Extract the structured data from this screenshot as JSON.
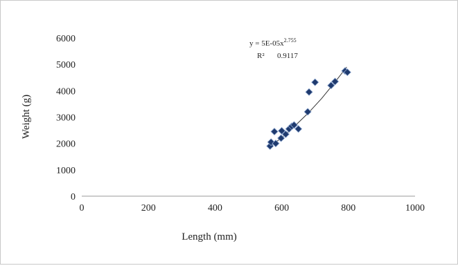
{
  "chart_data": {
    "type": "scatter",
    "title": "",
    "xlabel": "Length (mm)",
    "ylabel": "Weight (g)",
    "xlim": [
      0,
      1000
    ],
    "ylim": [
      0,
      6000
    ],
    "xticks": [
      0,
      200,
      400,
      600,
      800,
      1000
    ],
    "yticks": [
      0,
      1000,
      2000,
      3000,
      4000,
      5000,
      6000
    ],
    "xtick_labels": [
      "0",
      "200",
      "400",
      "600",
      "800",
      "1000"
    ],
    "ytick_labels": [
      "0",
      "1000",
      "2000",
      "3000",
      "4000",
      "5000",
      "6000"
    ],
    "grid": false,
    "legend": "none",
    "marker": "diamond",
    "marker_color": "#1f3a6e",
    "trendline_color": "#333333",
    "points": [
      {
        "x": 565,
        "y": 1900
      },
      {
        "x": 568,
        "y": 2050
      },
      {
        "x": 578,
        "y": 2450
      },
      {
        "x": 582,
        "y": 2000
      },
      {
        "x": 598,
        "y": 2200
      },
      {
        "x": 600,
        "y": 2480
      },
      {
        "x": 612,
        "y": 2350
      },
      {
        "x": 622,
        "y": 2550
      },
      {
        "x": 630,
        "y": 2650
      },
      {
        "x": 637,
        "y": 2700
      },
      {
        "x": 650,
        "y": 2550
      },
      {
        "x": 678,
        "y": 3200
      },
      {
        "x": 682,
        "y": 3950
      },
      {
        "x": 700,
        "y": 4320
      },
      {
        "x": 748,
        "y": 4200
      },
      {
        "x": 760,
        "y": 4350
      },
      {
        "x": 790,
        "y": 4750
      },
      {
        "x": 797,
        "y": 4700
      }
    ],
    "trendline": {
      "type": "power",
      "x_range": [
        565,
        795
      ],
      "x": [
        565,
        600,
        640,
        680,
        720,
        760,
        795
      ],
      "y": [
        1880,
        2220,
        2670,
        3160,
        3710,
        4330,
        4900
      ]
    },
    "annotation": {
      "equation": "y = 5E-05x",
      "exponent": "2.755",
      "r2_label": "R²",
      "r2_value": "0.9117"
    }
  }
}
